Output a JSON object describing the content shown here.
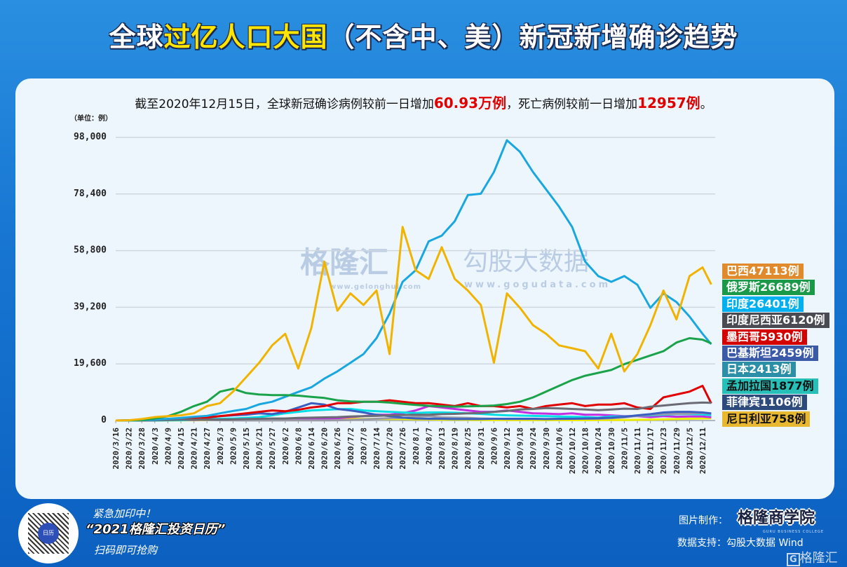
{
  "header": {
    "title_pre": "全球",
    "title_hl": "过亿人口大国",
    "title_post": "（不含中、美）新冠新增确诊趋势",
    "subtitle_a": "截至2020年12月15日，全球新冠确诊病例较前一日增加",
    "subtitle_b": "60.93万例",
    "subtitle_c": "，死亡病例较前一日增加",
    "subtitle_d": "12957例",
    "subtitle_e": "。"
  },
  "watermarks": {
    "w1": "格隆汇",
    "w1_url": "www.gelonghui.com",
    "w2": "勾股大数据",
    "w2_url": "www.gogudata.com"
  },
  "footer": {
    "promo1": "紧急加印中！",
    "promo2": "“2021格隆汇投资日历”",
    "promo3": "扫码即可抢购",
    "made_by_label": "图片制作：",
    "made_by": "格隆商学院",
    "made_by_en": "GURU BUSINESS COLLEGE",
    "source": "数据支持：勾股大数据 Wind",
    "logo": "格隆汇"
  },
  "chart_data": {
    "type": "line",
    "unit_label": "（单位：例）",
    "ylim": [
      0,
      98000
    ],
    "yticks": [
      "0",
      "19,600",
      "39,200",
      "58,800",
      "78,400",
      "98,000"
    ],
    "grid": true,
    "legend_placement": "right",
    "x": [
      "2020/3/16",
      "2020/3/22",
      "2020/3/28",
      "2020/4/3",
      "2020/4/9",
      "2020/4/15",
      "2020/4/21",
      "2020/4/27",
      "2020/5/3",
      "2020/5/9",
      "2020/5/15",
      "2020/5/21",
      "2020/5/27",
      "2020/6/2",
      "2020/6/8",
      "2020/6/14",
      "2020/6/20",
      "2020/6/26",
      "2020/7/2",
      "2020/7/8",
      "2020/7/14",
      "2020/7/20",
      "2020/7/26",
      "2020/8/1",
      "2020/8/7",
      "2020/8/13",
      "2020/8/19",
      "2020/8/25",
      "2020/8/31",
      "2020/9/6",
      "2020/9/12",
      "2020/9/18",
      "2020/9/24",
      "2020/9/30",
      "2020/10/6",
      "2020/10/12",
      "2020/10/18",
      "2020/10/24",
      "2020/10/30",
      "2020/11/5",
      "2020/11/11",
      "2020/11/17",
      "2020/11/23",
      "2020/11/29",
      "2020/12/5",
      "2020/12/11",
      "2020/12/15"
    ],
    "xtick_labels": [
      "2020/3/16",
      "2020/3/22",
      "2020/3/28",
      "2020/4/3",
      "2020/4/9",
      "2020/4/15",
      "2020/4/21",
      "2020/4/27",
      "2020/5/3",
      "2020/5/9",
      "2020/5/15",
      "2020/5/21",
      "2020/5/27",
      "2020/6/2",
      "2020/6/8",
      "2020/6/14",
      "2020/6/20",
      "2020/6/26",
      "2020/7/2",
      "2020/7/8",
      "2020/7/14",
      "2020/7/20",
      "2020/7/26",
      "2020/8/1",
      "2020/8/7",
      "2020/8/13",
      "2020/8/19",
      "2020/8/25",
      "2020/8/31",
      "2020/9/6",
      "2020/9/12",
      "2020/9/18",
      "2020/9/24",
      "2020/9/30",
      "2020/10/6",
      "2020/10/12",
      "2020/10/18",
      "2020/10/24",
      "2020/10/30",
      "2020/11/5",
      "2020/11/11",
      "2020/11/17",
      "2020/11/23",
      "2020/11/29",
      "2020/12/5",
      "2020/12/11"
    ],
    "series": [
      {
        "name": "巴西",
        "label": "巴西47113例",
        "color": "#f0b400",
        "label_bg": "#e08a2c",
        "label_fg": "#ffffff",
        "values": [
          0,
          100,
          500,
          1200,
          1500,
          1800,
          2500,
          5000,
          6000,
          10000,
          15000,
          20000,
          26000,
          30000,
          18000,
          32000,
          55000,
          38000,
          44000,
          40000,
          45000,
          23000,
          67000,
          52000,
          49000,
          60000,
          49000,
          45000,
          40000,
          20000,
          44000,
          39000,
          33000,
          30000,
          26000,
          25000,
          24000,
          18000,
          30000,
          17000,
          23000,
          33000,
          45000,
          35000,
          50000,
          53000,
          47113
        ]
      },
      {
        "name": "俄罗斯",
        "label": "俄罗斯26689例",
        "color": "#1aa34a",
        "label_bg": "#1a9a48",
        "label_fg": "#ffffff",
        "values": [
          0,
          50,
          200,
          700,
          1500,
          3000,
          5000,
          6500,
          10000,
          11000,
          9500,
          9000,
          8800,
          8800,
          8600,
          8200,
          7800,
          7000,
          6600,
          6500,
          6500,
          6200,
          5800,
          5400,
          5100,
          4900,
          4800,
          4900,
          5000,
          5200,
          5700,
          6500,
          8000,
          10000,
          12000,
          14000,
          15500,
          16500,
          17500,
          19500,
          21000,
          22500,
          24000,
          27000,
          28500,
          28000,
          26689
        ]
      },
      {
        "name": "印度",
        "label": "印度26401例",
        "color": "#1aa7e0",
        "label_bg": "#00b0f0",
        "label_fg": "#ffffff",
        "values": [
          0,
          0,
          100,
          300,
          600,
          900,
          1300,
          1600,
          2500,
          3300,
          4000,
          5600,
          6500,
          8200,
          9900,
          11500,
          14500,
          17000,
          20000,
          23000,
          28500,
          37000,
          48000,
          52000,
          62000,
          64000,
          69000,
          78000,
          78500,
          86000,
          97000,
          93000,
          86000,
          80000,
          74000,
          67000,
          55000,
          50000,
          48000,
          50000,
          47000,
          39000,
          44000,
          41000,
          36000,
          30000,
          26401
        ]
      },
      {
        "name": "印度尼西亚",
        "label": "印度尼西亚6120例",
        "color": "#6b6b75",
        "label_bg": "#4a4a52",
        "label_fg": "#ffffff",
        "values": [
          0,
          0,
          50,
          100,
          200,
          300,
          300,
          350,
          350,
          400,
          500,
          600,
          700,
          700,
          900,
          1000,
          1100,
          1200,
          1400,
          1500,
          1600,
          1800,
          1900,
          2000,
          2000,
          2200,
          2300,
          2500,
          2600,
          3000,
          3300,
          3800,
          4000,
          4300,
          4200,
          4000,
          3800,
          3600,
          3800,
          4100,
          4000,
          4800,
          5200,
          5600,
          6000,
          6200,
          6120
        ]
      },
      {
        "name": "墨西哥",
        "label": "墨西哥5930例",
        "color": "#e00000",
        "label_bg": "#d40000",
        "label_fg": "#ffffff",
        "values": [
          0,
          0,
          20,
          100,
          300,
          500,
          800,
          1000,
          1500,
          2000,
          2500,
          3000,
          3500,
          3200,
          3700,
          4500,
          5000,
          6000,
          6000,
          6500,
          6500,
          7000,
          6500,
          6000,
          6000,
          5500,
          5000,
          6000,
          5000,
          5000,
          4500,
          5000,
          4000,
          5000,
          5500,
          6000,
          5000,
          5500,
          5500,
          6000,
          4500,
          4000,
          8000,
          9000,
          10000,
          12000,
          5930
        ]
      },
      {
        "name": "巴基斯坦",
        "label": "巴基斯坦2459例",
        "color": "#3b5fc0",
        "label_bg": "#3a5aa8",
        "label_fg": "#ffffff",
        "values": [
          0,
          50,
          200,
          300,
          400,
          600,
          800,
          1200,
          1500,
          1800,
          2000,
          2500,
          2200,
          3000,
          4500,
          6000,
          5500,
          4000,
          3500,
          2800,
          2000,
          1500,
          1000,
          700,
          600,
          600,
          500,
          500,
          500,
          600,
          600,
          600,
          600,
          500,
          600,
          600,
          700,
          800,
          1000,
          1300,
          1800,
          2200,
          2800,
          3000,
          3000,
          2800,
          2459
        ]
      },
      {
        "name": "日本",
        "label": "日本2413例",
        "color": "#9a9aa6",
        "label_bg": "#2b8fa8",
        "label_fg": "#ffffff",
        "values": [
          0,
          30,
          100,
          200,
          500,
          500,
          300,
          200,
          100,
          50,
          30,
          30,
          30,
          40,
          40,
          50,
          80,
          100,
          200,
          400,
          600,
          800,
          900,
          1300,
          1500,
          1100,
          1000,
          900,
          700,
          600,
          500,
          500,
          500,
          500,
          500,
          600,
          600,
          600,
          800,
          1100,
          1600,
          2000,
          2200,
          2300,
          2400,
          2600,
          2413
        ]
      },
      {
        "name": "孟加拉国",
        "label": "孟加拉国1877例",
        "color": "#00dfe6",
        "label_bg": "#26c0b8",
        "label_fg": "#111111",
        "values": [
          0,
          0,
          0,
          10,
          50,
          100,
          300,
          500,
          600,
          700,
          900,
          1200,
          1800,
          2500,
          3000,
          3500,
          3700,
          3900,
          4000,
          3500,
          3200,
          3000,
          2800,
          2600,
          2800,
          2800,
          2700,
          2500,
          2300,
          2000,
          1800,
          1700,
          1600,
          1500,
          1400,
          1300,
          1200,
          1000,
          1400,
          1400,
          1600,
          1800,
          2000,
          2200,
          2200,
          2100,
          1877
        ]
      },
      {
        "name": "菲律宾",
        "label": "菲律宾1106例",
        "color": "#c030e0",
        "label_bg": "#2c4a7c",
        "label_fg": "#ffffff",
        "values": [
          0,
          20,
          100,
          300,
          200,
          200,
          200,
          250,
          300,
          250,
          200,
          250,
          400,
          500,
          600,
          600,
          700,
          800,
          1200,
          1500,
          2000,
          2000,
          2500,
          3500,
          5000,
          4500,
          4000,
          3500,
          3000,
          3000,
          3500,
          3000,
          2500,
          2400,
          2200,
          2500,
          2000,
          2000,
          1800,
          1500,
          1500,
          1200,
          1500,
          1300,
          1400,
          1400,
          1106
        ]
      },
      {
        "name": "尼日利亚",
        "label": "尼日利亚758例",
        "color": "#f0ee00",
        "label_bg": "#e8b830",
        "label_fg": "#111111",
        "values": [
          0,
          0,
          10,
          20,
          40,
          60,
          100,
          150,
          200,
          250,
          300,
          350,
          300,
          400,
          500,
          600,
          600,
          700,
          600,
          500,
          600,
          500,
          500,
          400,
          400,
          300,
          300,
          250,
          200,
          180,
          150,
          150,
          150,
          150,
          150,
          150,
          150,
          200,
          200,
          200,
          250,
          300,
          400,
          500,
          600,
          700,
          758
        ]
      }
    ]
  }
}
